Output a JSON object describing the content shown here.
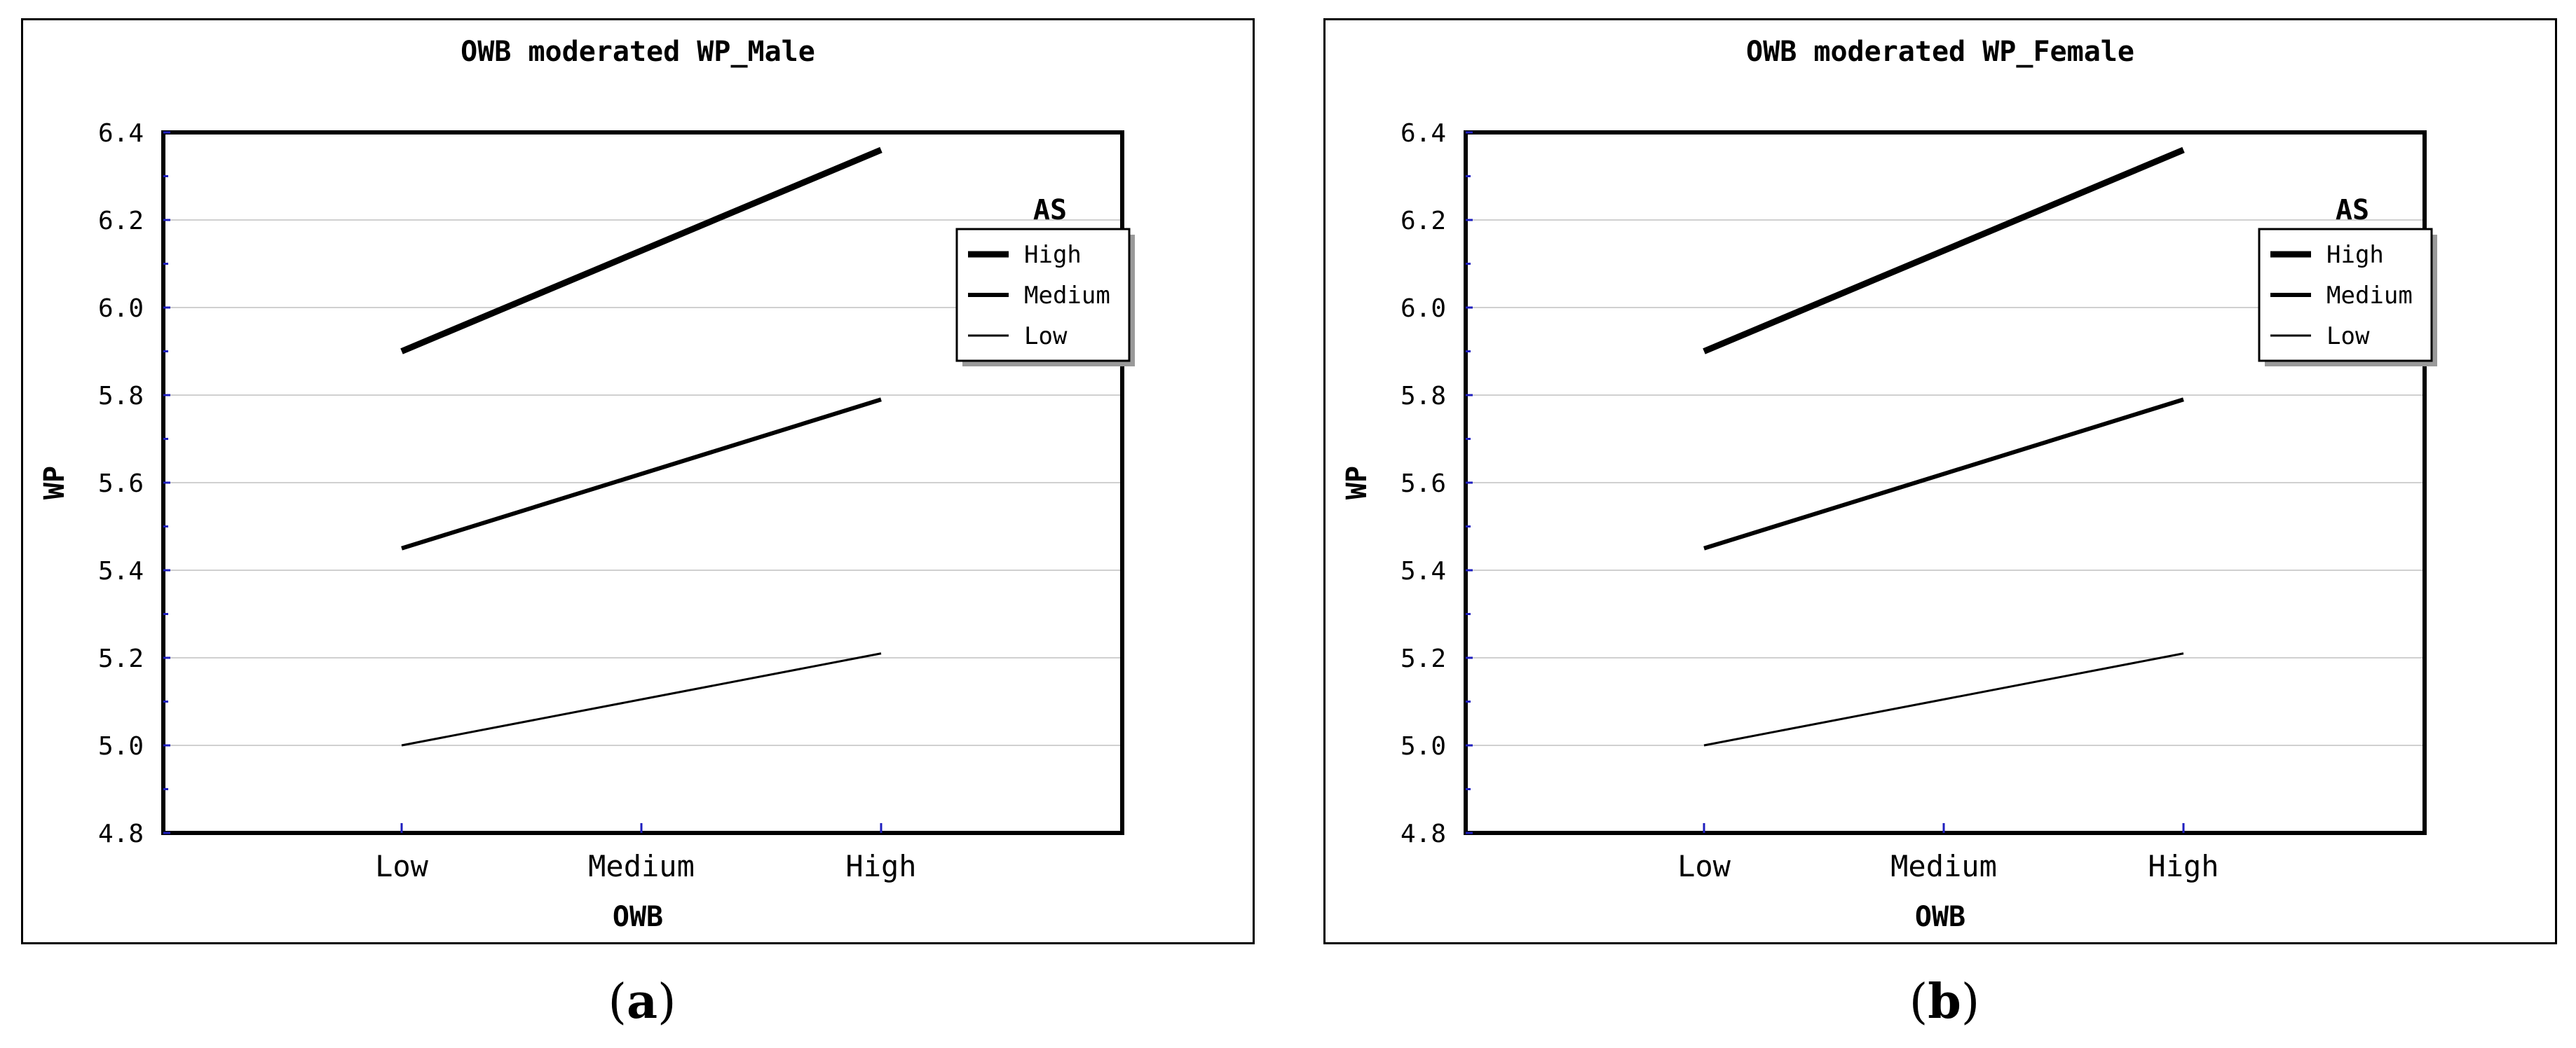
{
  "captions": {
    "a_open": "(",
    "a_letter": "a",
    "a_close": ")",
    "b_open": "(",
    "b_letter": "b",
    "b_close": ")"
  },
  "chart_data": [
    {
      "type": "line",
      "title": "OWB moderated WP_Male",
      "xlabel": "OWB",
      "ylabel": "WP",
      "categories": [
        "Low",
        "Medium",
        "High"
      ],
      "ylim": [
        4.8,
        6.4
      ],
      "yticks": [
        "4.8",
        "5.0",
        "5.2",
        "5.4",
        "5.6",
        "5.8",
        "6.0",
        "6.2",
        "6.4"
      ],
      "grid": true,
      "legend_title": "AS",
      "legend_position": "top-right",
      "series": [
        {
          "name": "High",
          "values": [
            5.9,
            6.13,
            6.36
          ],
          "line": "thick"
        },
        {
          "name": "Medium",
          "values": [
            5.45,
            5.62,
            5.79
          ],
          "line": "medium"
        },
        {
          "name": "Low",
          "values": [
            5.0,
            5.105,
            5.21
          ],
          "line": "thin"
        }
      ]
    },
    {
      "type": "line",
      "title": "OWB moderated WP_Female",
      "xlabel": "OWB",
      "ylabel": "WP",
      "categories": [
        "Low",
        "Medium",
        "High"
      ],
      "ylim": [
        4.8,
        6.4
      ],
      "yticks": [
        "4.8",
        "5.0",
        "5.2",
        "5.4",
        "5.6",
        "5.8",
        "6.0",
        "6.2",
        "6.4"
      ],
      "grid": true,
      "legend_title": "AS",
      "legend_position": "top-right",
      "series": [
        {
          "name": "High",
          "values": [
            5.9,
            6.13,
            6.36
          ],
          "line": "thick"
        },
        {
          "name": "Medium",
          "values": [
            5.45,
            5.62,
            5.79
          ],
          "line": "medium"
        },
        {
          "name": "Low",
          "values": [
            5.0,
            5.105,
            5.21
          ],
          "line": "thin"
        }
      ]
    }
  ]
}
